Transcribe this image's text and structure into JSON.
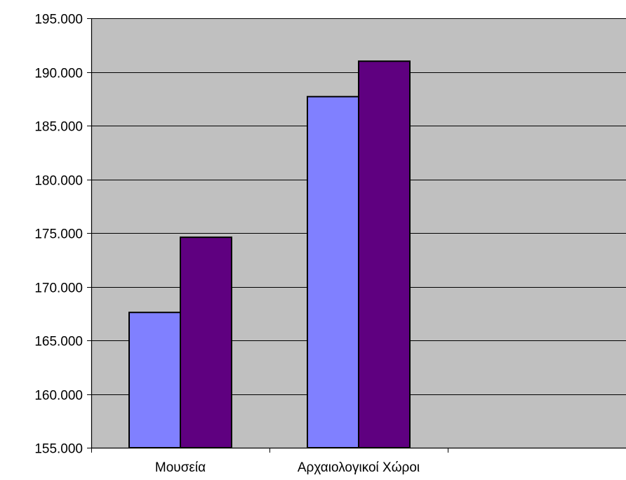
{
  "chart_data": {
    "type": "bar",
    "categories": [
      "Μουσεία",
      "Αρχαιολογικοί Χώροι",
      ""
    ],
    "series": [
      {
        "values": [
          167600,
          187700,
          null
        ],
        "color": "#8080ff"
      },
      {
        "values": [
          174600,
          191000,
          null
        ],
        "color": "#5f0080"
      }
    ],
    "yticks": [
      "155.000",
      "160.000",
      "165.000",
      "170.000",
      "175.000",
      "180.000",
      "185.000",
      "190.000",
      "195.000"
    ],
    "ylim": [
      155000,
      195000
    ],
    "ytick_step": 5000,
    "xlabel": "",
    "ylabel": "",
    "title": "",
    "grid": true,
    "legend": "none",
    "plot_background": "#c0c0c0",
    "gridline_color": "#000000"
  }
}
